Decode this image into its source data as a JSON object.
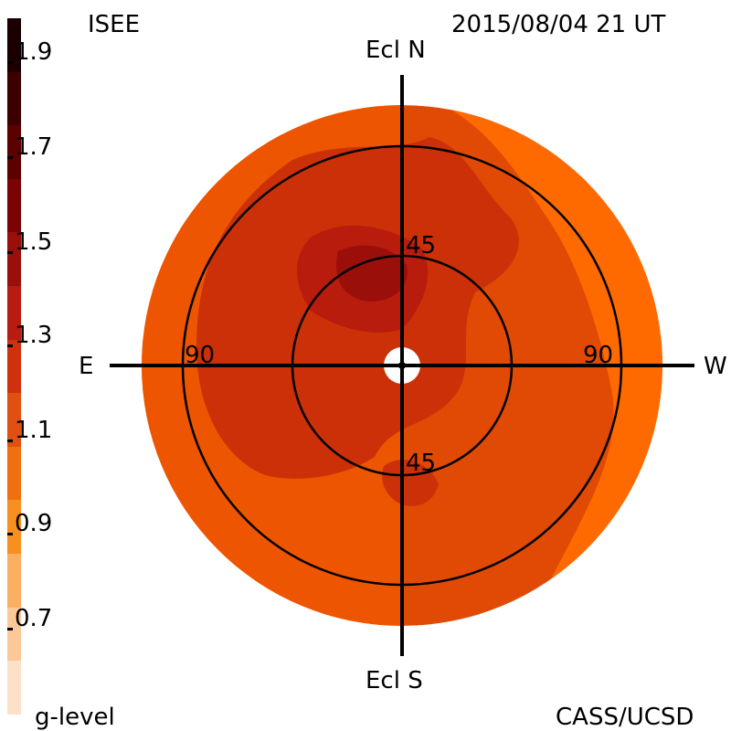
{
  "header": {
    "left_title": "ISEE",
    "timestamp": "2015/08/04 21 UT"
  },
  "footer": {
    "scale_label": "g-level",
    "credit": "CASS/UCSD"
  },
  "compass": {
    "north": "Ecl N",
    "south": "Ecl S",
    "east": "E",
    "west": "W"
  },
  "ring_labels": {
    "inner_top": "45",
    "inner_bottom": "45",
    "outer_left": "90",
    "outer_right": "90"
  },
  "colorbar": {
    "ticks": [
      "1.9",
      "1.7",
      "1.5",
      "1.3",
      "1.1",
      "0.9",
      "0.7"
    ],
    "colors": [
      "#1a0000",
      "#3d0000",
      "#5c0000",
      "#7a0404",
      "#9a0f0a",
      "#b81c10",
      "#d0300c",
      "#e05010",
      "#f07010",
      "#f89020",
      "#fab060",
      "#fcc898",
      "#fde0c8"
    ]
  },
  "map_colors": {
    "lightest": "#ff6a00",
    "light": "#ee5500",
    "medium": "#e04a05",
    "dark": "#cc3008",
    "darker": "#b81c0c",
    "darkest": "#9a0f0a",
    "core": "#7a0404"
  }
}
